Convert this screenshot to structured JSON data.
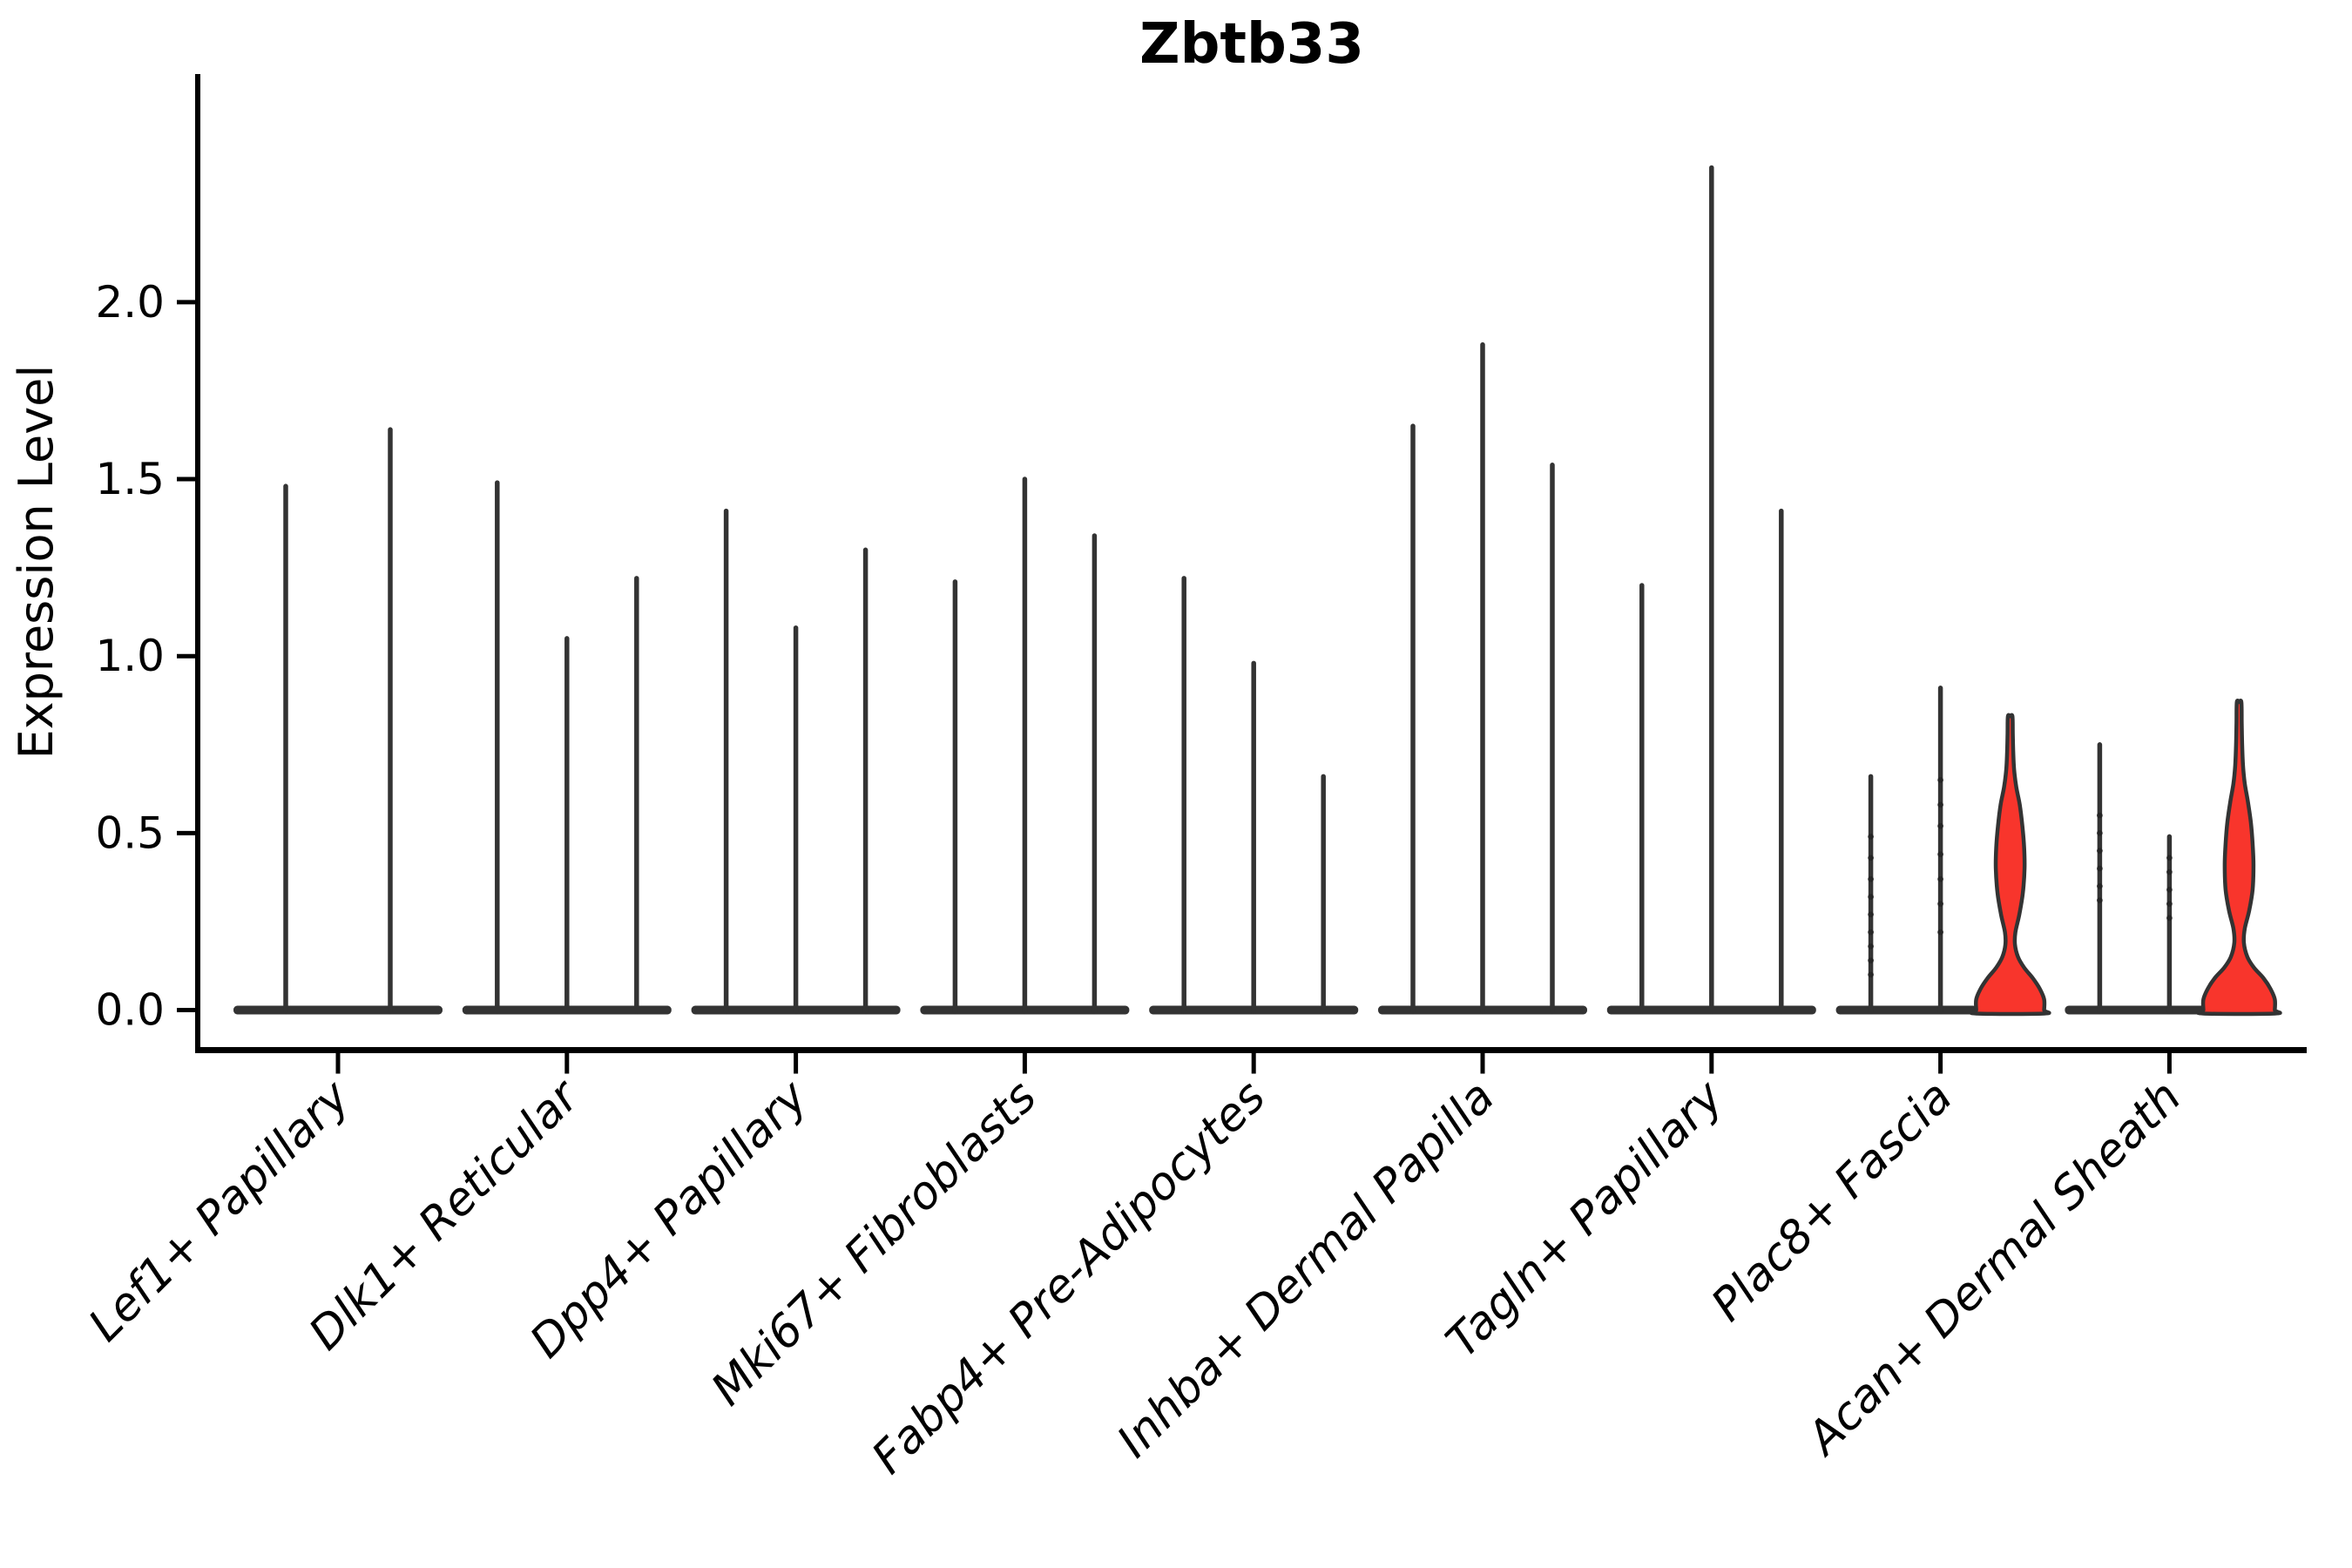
{
  "page": {
    "background_color": "#ffffff"
  },
  "chart_data": {
    "type": "violin",
    "title": "Zbtb33",
    "xlabel": "",
    "ylabel": "Expression Level",
    "ylim": [
      0.0,
      2.6
    ],
    "yticks": [
      0.0,
      0.5,
      1.0,
      1.5,
      2.0
    ],
    "ytick_labels": [
      "0.0",
      "0.5",
      "1.0",
      "1.5",
      "2.0"
    ],
    "grid": false,
    "legend": null,
    "colors": {
      "violin_stroke": "#333333",
      "highlight_fill": "#f8352c",
      "jitter_dot": "#252525",
      "axis": "#000000",
      "text": "#000000"
    },
    "groups": [
      {
        "label": "Lef1+ Papillary",
        "violins": [
          {
            "max": 1.48,
            "highlight": false
          },
          {
            "max": 1.64,
            "highlight": false
          }
        ]
      },
      {
        "label": "Dlk1+ Reticular",
        "violins": [
          {
            "max": 1.49,
            "highlight": false
          },
          {
            "max": 1.05,
            "highlight": false
          },
          {
            "max": 1.22,
            "highlight": false
          }
        ]
      },
      {
        "label": "Dpp4+ Papillary",
        "violins": [
          {
            "max": 1.41,
            "highlight": false
          },
          {
            "max": 1.08,
            "highlight": false
          },
          {
            "max": 1.3,
            "highlight": false
          }
        ]
      },
      {
        "label": "Mki67+ Fibroblasts",
        "violins": [
          {
            "max": 1.21,
            "highlight": false
          },
          {
            "max": 1.5,
            "highlight": false
          },
          {
            "max": 1.34,
            "highlight": false
          }
        ]
      },
      {
        "label": "Fabp4+ Pre-Adipocytes",
        "violins": [
          {
            "max": 1.22,
            "highlight": false
          },
          {
            "max": 0.98,
            "highlight": false
          },
          {
            "max": 0.66,
            "highlight": false
          }
        ]
      },
      {
        "label": "Inhba+ Dermal Papilla",
        "violins": [
          {
            "max": 1.65,
            "highlight": false
          },
          {
            "max": 1.88,
            "highlight": false
          },
          {
            "max": 1.54,
            "highlight": false
          }
        ]
      },
      {
        "label": "Tagln+ Papillary",
        "violins": [
          {
            "max": 1.2,
            "highlight": false
          },
          {
            "max": 2.38,
            "highlight": false
          },
          {
            "max": 1.41,
            "highlight": false
          }
        ]
      },
      {
        "label": "Plac8+ Fascia",
        "violins": [
          {
            "max": 0.66,
            "highlight": false,
            "dots": [
              0.1,
              0.14,
              0.18,
              0.22,
              0.27,
              0.32,
              0.37,
              0.43,
              0.49
            ]
          },
          {
            "max": 0.91,
            "highlight": false,
            "dots": [
              0.22,
              0.3,
              0.37,
              0.44,
              0.52,
              0.58,
              0.65
            ]
          },
          {
            "max": 0.83,
            "highlight": true,
            "profile": [
              [
                0.0,
                39
              ],
              [
                0.03,
                39
              ],
              [
                0.06,
                34
              ],
              [
                0.09,
                26
              ],
              [
                0.12,
                16
              ],
              [
                0.15,
                9
              ],
              [
                0.185,
                5.5
              ],
              [
                0.22,
                6
              ],
              [
                0.27,
                10.5
              ],
              [
                0.33,
                14.5
              ],
              [
                0.4,
                16.5
              ],
              [
                0.46,
                16
              ],
              [
                0.52,
                14
              ],
              [
                0.58,
                11
              ],
              [
                0.63,
                7
              ],
              [
                0.68,
                4.5
              ],
              [
                0.73,
                3.5
              ],
              [
                0.78,
                3
              ],
              [
                0.83,
                2.6
              ]
            ]
          }
        ]
      },
      {
        "label": "Acan+ Dermal Sheath",
        "violins": [
          {
            "max": 0.75,
            "highlight": false,
            "dots": [
              0.31,
              0.35,
              0.4,
              0.45,
              0.5,
              0.55
            ]
          },
          {
            "max": 0.49,
            "highlight": false,
            "dots": [
              0.26,
              0.3,
              0.34,
              0.39,
              0.43
            ]
          },
          {
            "max": 0.87,
            "highlight": true,
            "profile": [
              [
                0.0,
                41
              ],
              [
                0.03,
                41
              ],
              [
                0.06,
                36
              ],
              [
                0.09,
                28
              ],
              [
                0.12,
                17
              ],
              [
                0.15,
                9.5
              ],
              [
                0.19,
                5.5
              ],
              [
                0.23,
                6.5
              ],
              [
                0.28,
                11.5
              ],
              [
                0.34,
                15.5
              ],
              [
                0.41,
                16.5
              ],
              [
                0.47,
                15.5
              ],
              [
                0.53,
                13.5
              ],
              [
                0.59,
                10
              ],
              [
                0.64,
                6.5
              ],
              [
                0.69,
                4.5
              ],
              [
                0.75,
                3.5
              ],
              [
                0.81,
                3
              ],
              [
                0.87,
                2.6
              ]
            ]
          }
        ]
      }
    ]
  }
}
